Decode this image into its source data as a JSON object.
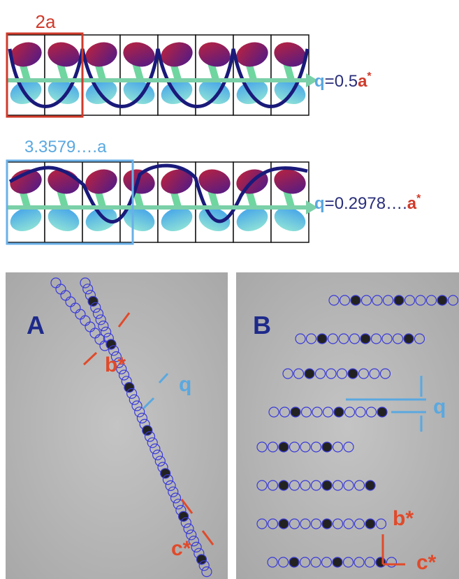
{
  "top": {
    "row1": {
      "cell_label": "2a",
      "wavevector": [
        "q",
        "=0.5",
        "a",
        "*"
      ]
    },
    "row2": {
      "cell_label": "3.3579….a",
      "wavevector": [
        "q",
        "=0.2978….",
        "a",
        "*"
      ]
    }
  },
  "panel_a": {
    "label": "A",
    "annotations": {
      "b": "b*",
      "q": "q",
      "c": "c*"
    }
  },
  "panel_b": {
    "label": "B",
    "annotations": {
      "q": "q",
      "b": "b*",
      "c": "c*"
    }
  }
}
